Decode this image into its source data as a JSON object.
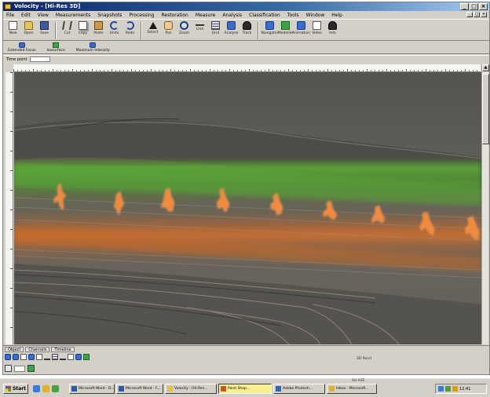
{
  "window": {
    "title": "Volocity - [Hi-Res 3D]",
    "controls": [
      "_",
      "□",
      "×"
    ]
  },
  "menu": {
    "items": [
      "File",
      "Edit",
      "View",
      "Measurements",
      "Snapshots",
      "Processing",
      "Restoration",
      "Measure",
      "Analysis",
      "Classification",
      "Tools",
      "Window",
      "Help"
    ],
    "mdi_controls": [
      "_",
      "□",
      "×"
    ]
  },
  "toolbar": {
    "buttons": [
      {
        "label": "New",
        "icon": "new-document-icon"
      },
      {
        "label": "Open",
        "icon": "open-folder-icon"
      },
      {
        "label": "Save",
        "icon": "save-disk-icon"
      },
      {
        "label": "Cut",
        "icon": "cut-icon"
      },
      {
        "label": "Copy",
        "icon": "copy-icon"
      },
      {
        "label": "Paste",
        "icon": "paste-icon"
      },
      {
        "label": "Undo",
        "icon": "undo-icon"
      },
      {
        "label": "Redo",
        "icon": "redo-icon"
      },
      {
        "label": "Select",
        "icon": "pointer-icon"
      },
      {
        "label": "Pan",
        "icon": "hand-icon"
      },
      {
        "label": "Zoom",
        "icon": "zoom-icon"
      },
      {
        "label": "Line",
        "icon": "line-icon"
      },
      {
        "label": "Grid",
        "icon": "grid-icon"
      },
      {
        "label": "Analyse",
        "icon": "analyse-icon"
      },
      {
        "label": "Track",
        "icon": "track-icon"
      },
      {
        "label": "Navigator",
        "icon": "navigator-icon"
      },
      {
        "label": "Modeller",
        "icon": "modeller-icon"
      },
      {
        "label": "Animation",
        "icon": "animation-icon"
      },
      {
        "label": "Video",
        "icon": "video-icon"
      },
      {
        "label": "Info",
        "icon": "info-icon"
      }
    ]
  },
  "toolbar2": {
    "buttons": [
      "Extended Focus",
      "Isosurface",
      "Maximum Intensity"
    ]
  },
  "fieldrow": {
    "label": "Time point"
  },
  "bottom_panel": {
    "tabs": [
      "Object",
      "Channels",
      "Timeline"
    ],
    "status": "3D Rend"
  },
  "taskbar": {
    "start": "Start",
    "tasks": [
      {
        "label": "Microsoft Word - D...",
        "active": false
      },
      {
        "label": "Microsoft Word - F...",
        "active": false
      },
      {
        "label": "Volocity - [Hi-Res...",
        "active": false
      },
      {
        "label": "Paint Shop...",
        "active": true
      },
      {
        "label": "Adobe Photosh...",
        "active": false
      },
      {
        "label": "Inbox - Microsoft...",
        "active": false
      }
    ],
    "tray_label": "SH ASE",
    "clock": "12:41"
  },
  "colors": {
    "titlebar_start": "#0a246a",
    "chrome": "#d4d0c8",
    "fluor_green": "#6fbf3f",
    "fluor_orange": "#e87a2a"
  }
}
